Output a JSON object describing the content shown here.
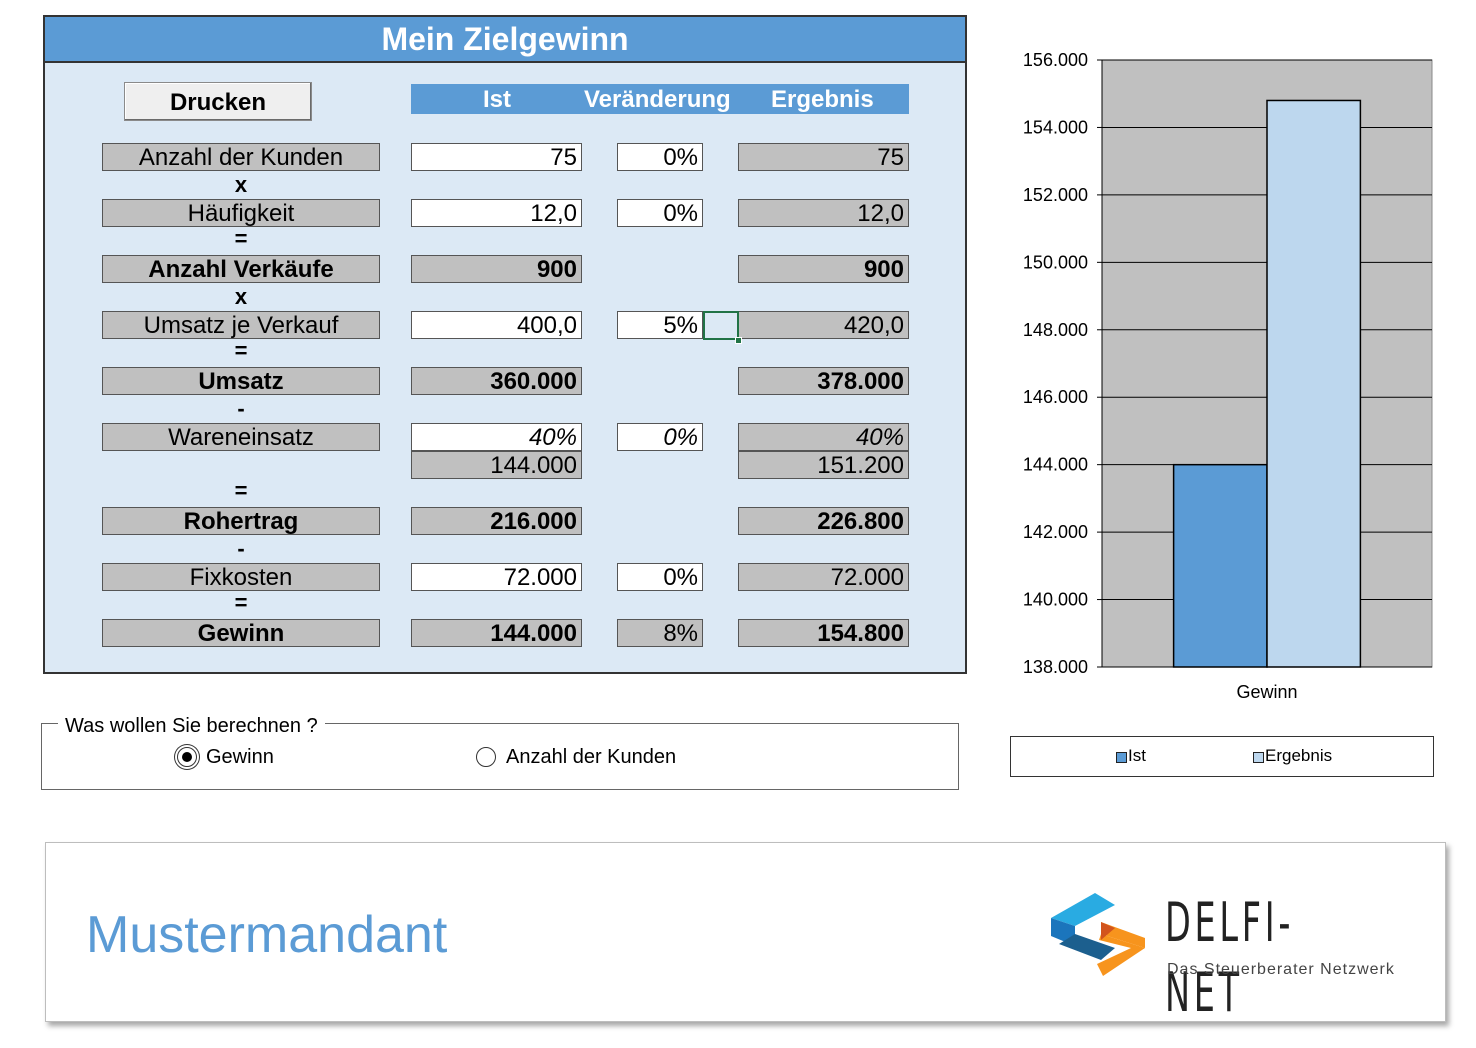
{
  "panel": {
    "title": "Mein Zielgewinn",
    "print_button": "Drucken"
  },
  "columns": {
    "ist": "Ist",
    "veraenderung": "Veränderung",
    "ergebnis": "Ergebnis"
  },
  "rows": {
    "kunden": {
      "label": "Anzahl der Kunden",
      "ist": "75",
      "ver": "0%",
      "erg": "75"
    },
    "haeufigkeit": {
      "label": "Häufigkeit",
      "ist": "12,0",
      "ver": "0%",
      "erg": "12,0"
    },
    "verkaeufe": {
      "label": "Anzahl Verkäufe",
      "ist": "900",
      "erg": "900"
    },
    "umsatz_je": {
      "label": "Umsatz je Verkauf",
      "ist": "400,0",
      "ver": "5%",
      "erg": "420,0"
    },
    "umsatz": {
      "label": "Umsatz",
      "ist": "360.000",
      "erg": "378.000"
    },
    "wareneinsatz": {
      "label": "Wareneinsatz",
      "ist_pct": "40%",
      "ver": "0%",
      "erg_pct": "40%",
      "ist": "144.000",
      "erg": "151.200"
    },
    "rohertrag": {
      "label": "Rohertrag",
      "ist": "216.000",
      "erg": "226.800"
    },
    "fixkosten": {
      "label": "Fixkosten",
      "ist": "72.000",
      "ver": "0%",
      "erg": "72.000"
    },
    "gewinn": {
      "label": "Gewinn",
      "ist": "144.000",
      "ver": "8%",
      "erg": "154.800"
    }
  },
  "operators": {
    "op1": "x",
    "op2": "=",
    "op3": "x",
    "op4": "=",
    "op5": "-",
    "op6": "=",
    "op7": "-",
    "op8": "="
  },
  "calc_group": {
    "legend": "Was wollen Sie berechnen ?",
    "options": [
      {
        "label": "Gewinn",
        "selected": true
      },
      {
        "label": "Anzahl der Kunden",
        "selected": false
      }
    ]
  },
  "chart_data": {
    "type": "bar",
    "categories": [
      "Gewinn"
    ],
    "series": [
      {
        "name": "Ist",
        "values": [
          144000
        ],
        "color": "#5b9bd5"
      },
      {
        "name": "Ergebnis",
        "values": [
          154800
        ],
        "color": "#bdd7ee"
      }
    ],
    "ylim": [
      138000,
      156000
    ],
    "yticks": [
      138000,
      140000,
      142000,
      144000,
      146000,
      148000,
      150000,
      152000,
      154000,
      156000
    ],
    "ytick_labels": [
      "138.000",
      "140.000",
      "142.000",
      "144.000",
      "146.000",
      "148.000",
      "150.000",
      "152.000",
      "154.000",
      "156.000"
    ],
    "grid": true,
    "plot_background": "#c0c0c0",
    "legend_position": "bottom"
  },
  "footer": {
    "client_name": "Mustermandant",
    "brand_name": "DELFI-NET",
    "brand_tagline": "Das Steuerberater Netzwerk"
  },
  "colors": {
    "accent": "#5b9bd5",
    "panel_bg": "#dce9f5",
    "cell_gray": "#c0c0c0",
    "selection": "#217346"
  }
}
